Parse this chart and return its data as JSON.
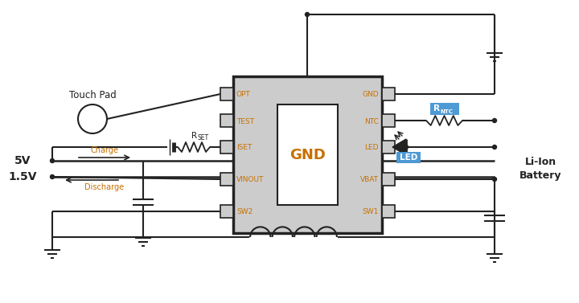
{
  "bg_color": "#ffffff",
  "chip_color": "#cccccc",
  "chip_border": "#222222",
  "inner_box_color": "#ffffff",
  "line_color": "#222222",
  "text_color": "#222222",
  "blue_text": "#c87000",
  "highlight_bg": "#4d9ad4",
  "pin_labels_left": [
    "OPT",
    "TEST",
    "ISET",
    "VINOUT",
    "SW2"
  ],
  "pin_labels_right": [
    "GND",
    "NTC",
    "LED",
    "VBAT",
    "SW1"
  ],
  "chip_center_label": "GND",
  "title_5v": "5V",
  "title_15v": "1.5V",
  "label_charge": "Charge",
  "label_discharge": "Discharge",
  "label_touchpad": "Touch Pad",
  "label_rset": "R",
  "label_rset_sub": "SET",
  "label_rntc": "R",
  "label_rntc_sub": "NTC",
  "label_led": "LED",
  "label_battery": "Li-Ion\nBattery"
}
